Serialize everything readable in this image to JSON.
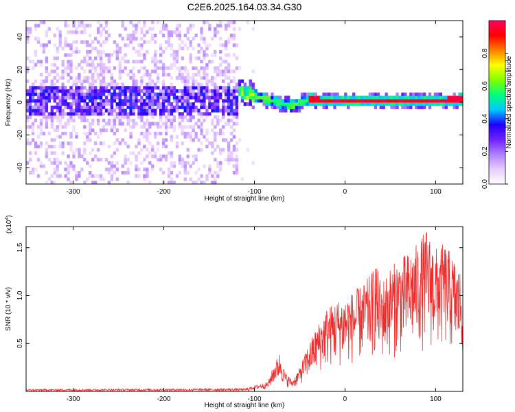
{
  "figure_title": "C2E6.2025.164.03.34.G30",
  "chart_data": [
    {
      "type": "heatmap",
      "title": "C2E6.2025.164.03.34.G30",
      "xlabel": "Height of straight line (km)",
      "ylabel": "Frequency (Hz)",
      "xlim": [
        -352,
        130
      ],
      "ylim": [
        -50,
        50
      ],
      "xticks": [
        -300,
        -200,
        -100,
        0,
        100
      ],
      "xtick_labels": [
        "-300",
        "-200",
        "-100",
        "0",
        "100"
      ],
      "yticks": [
        -40,
        -20,
        0,
        20,
        40
      ],
      "ytick_labels": [
        "-40",
        "-20",
        "0",
        "20",
        "40"
      ],
      "colorbar": {
        "label": "Normalized spectral amplitude",
        "range": [
          0,
          1
        ],
        "ticks": [
          0.0,
          0.2,
          0.4,
          0.6,
          0.8
        ],
        "tick_labels": [
          "0.0",
          "0.2",
          "0.4",
          "0.6",
          "0.8"
        ],
        "colors": [
          "#ffffff",
          "#e8ccff",
          "#b080ff",
          "#7020ff",
          "#2000ff",
          "#00c8ff",
          "#00ff80",
          "#80ff00",
          "#ffff00",
          "#ff8000",
          "#ff0000",
          "#ff0060"
        ]
      },
      "ridge": [
        {
          "x": -118,
          "y": 6
        },
        {
          "x": -110,
          "y": 5
        },
        {
          "x": -100,
          "y": 3
        },
        {
          "x": -90,
          "y": 1
        },
        {
          "x": -80,
          "y": 0
        },
        {
          "x": -70,
          "y": -2
        },
        {
          "x": -60,
          "y": -3
        },
        {
          "x": -50,
          "y": -1
        },
        {
          "x": -40,
          "y": 1
        },
        {
          "x": -20,
          "y": 0
        },
        {
          "x": 0,
          "y": 0
        },
        {
          "x": 50,
          "y": 0
        },
        {
          "x": 100,
          "y": 0
        },
        {
          "x": 130,
          "y": 1
        }
      ],
      "regions": [
        {
          "name": "noise-band",
          "x_range": [
            -352,
            -118
          ],
          "y_range": [
            -50,
            50
          ],
          "amplitude": 0.15
        },
        {
          "name": "core-band",
          "x_range": [
            -352,
            -118
          ],
          "y_range": [
            -10,
            10
          ],
          "amplitude": 0.3
        },
        {
          "name": "signal-line",
          "x_range": [
            -118,
            130
          ],
          "y_range": [
            -3,
            6
          ],
          "amplitude": 0.95
        }
      ]
    },
    {
      "type": "line",
      "xlabel": "Height of straight line (km)",
      "ylabel": "SNR (10 * v/v)",
      "scale_label": "(x10",
      "scale_exp": "4",
      "scale_close": ")",
      "xlim": [
        -352,
        130
      ],
      "ylim": [
        0,
        1.72
      ],
      "xticks": [
        -300,
        -200,
        -100,
        0,
        100
      ],
      "xtick_labels": [
        "-300",
        "-200",
        "-100",
        "0",
        "100"
      ],
      "yticks": [
        0.5,
        1.0,
        1.5
      ],
      "ytick_labels": [
        "0.5",
        "1.0",
        "1.5"
      ],
      "line_color": "#ee2c2c",
      "envelope": {
        "x": [
          -352,
          -110,
          -100,
          -85,
          -78,
          -72,
          -66,
          -58,
          -50,
          -40,
          -30,
          -20,
          -10,
          0,
          10,
          20,
          30,
          33,
          40,
          50,
          60,
          70,
          80,
          90,
          100,
          110,
          120,
          125,
          130
        ],
        "y": [
          0.02,
          0.03,
          0.06,
          0.1,
          0.3,
          0.4,
          0.2,
          0.12,
          0.25,
          0.5,
          0.7,
          0.88,
          0.95,
          1.0,
          1.05,
          1.12,
          1.25,
          1.38,
          1.15,
          1.3,
          1.4,
          1.45,
          1.55,
          1.7,
          1.5,
          1.55,
          1.4,
          1.3,
          1.25
        ]
      }
    }
  ]
}
